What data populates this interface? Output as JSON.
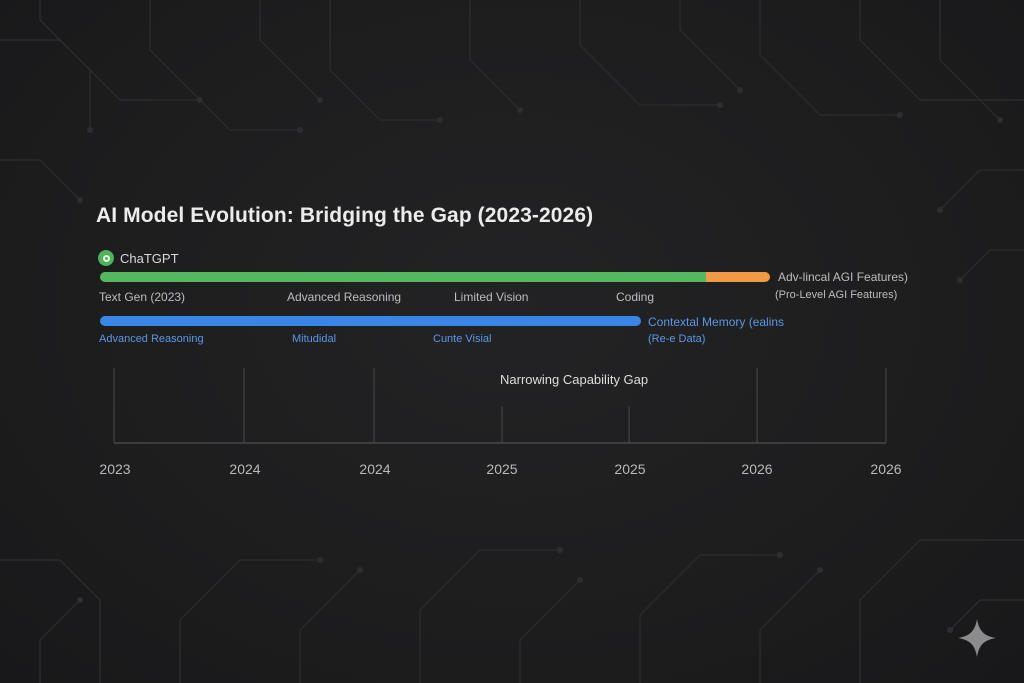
{
  "title": "AI Model Evolution: Bridging the Gap (2023-2026)",
  "model": {
    "icon": "chatgpt-icon",
    "name": "ChaTGPT"
  },
  "colors": {
    "green": "#54b95e",
    "orange": "#ef9a44",
    "blue": "#3a86e6"
  },
  "track1": {
    "labels": [
      "Text Gen (2023)",
      "Advanced Reasoning",
      "Limited Vision",
      "Coding"
    ],
    "end_label": "Adv-lincal AGI Features)",
    "end_sublabel": "(Pro-Level AGI Features)"
  },
  "track2": {
    "labels": [
      "Advanced Reasoning",
      "Mitudidal",
      "Cunte Visial"
    ],
    "end_label": "Contextal Memory (ealins",
    "end_sublabel": "(Re-e Data)"
  },
  "gap_label": "Narrowing Capability Gap",
  "years": [
    "2023",
    "2024",
    "2024",
    "2025",
    "2025",
    "2026",
    "2026"
  ]
}
